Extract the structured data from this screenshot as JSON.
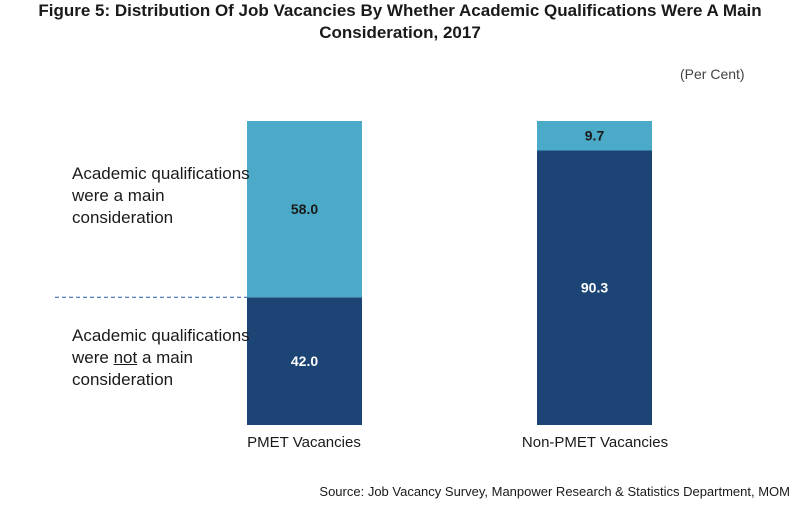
{
  "title": {
    "line1": "Figure 5: Distribution Of Job Vacancies By Whether Academic Qualifications Were A Main",
    "line2": "Consideration, 2017"
  },
  "unit_label": "(Per Cent)",
  "annotations": {
    "top": "Academic qualifications were a main consideration",
    "bottom_before": "Academic qualifications were ",
    "bottom_emph": "not",
    "bottom_after": " a main consideration"
  },
  "source": "Source: Job Vacancy Survey, Manpower Research & Statistics Department, MOM",
  "colors": {
    "light": "#4aaac7",
    "dark": "#1c4576",
    "dashed_line": "#3a6fb5"
  },
  "chart_data": {
    "type": "bar",
    "stacked": true,
    "categories": [
      "PMET Vacancies",
      "Non-PMET Vacancies"
    ],
    "series": [
      {
        "values": [
          42.0,
          90.3
        ],
        "color": "#1c4576"
      },
      {
        "values": [
          58.0,
          9.7
        ],
        "color": "#4aaac7"
      }
    ],
    "data_labels": [
      [
        "42.0",
        "90.3"
      ],
      [
        "58.0",
        "9.7"
      ]
    ],
    "ylim": [
      0,
      100
    ],
    "grid": false,
    "legend": "none"
  }
}
